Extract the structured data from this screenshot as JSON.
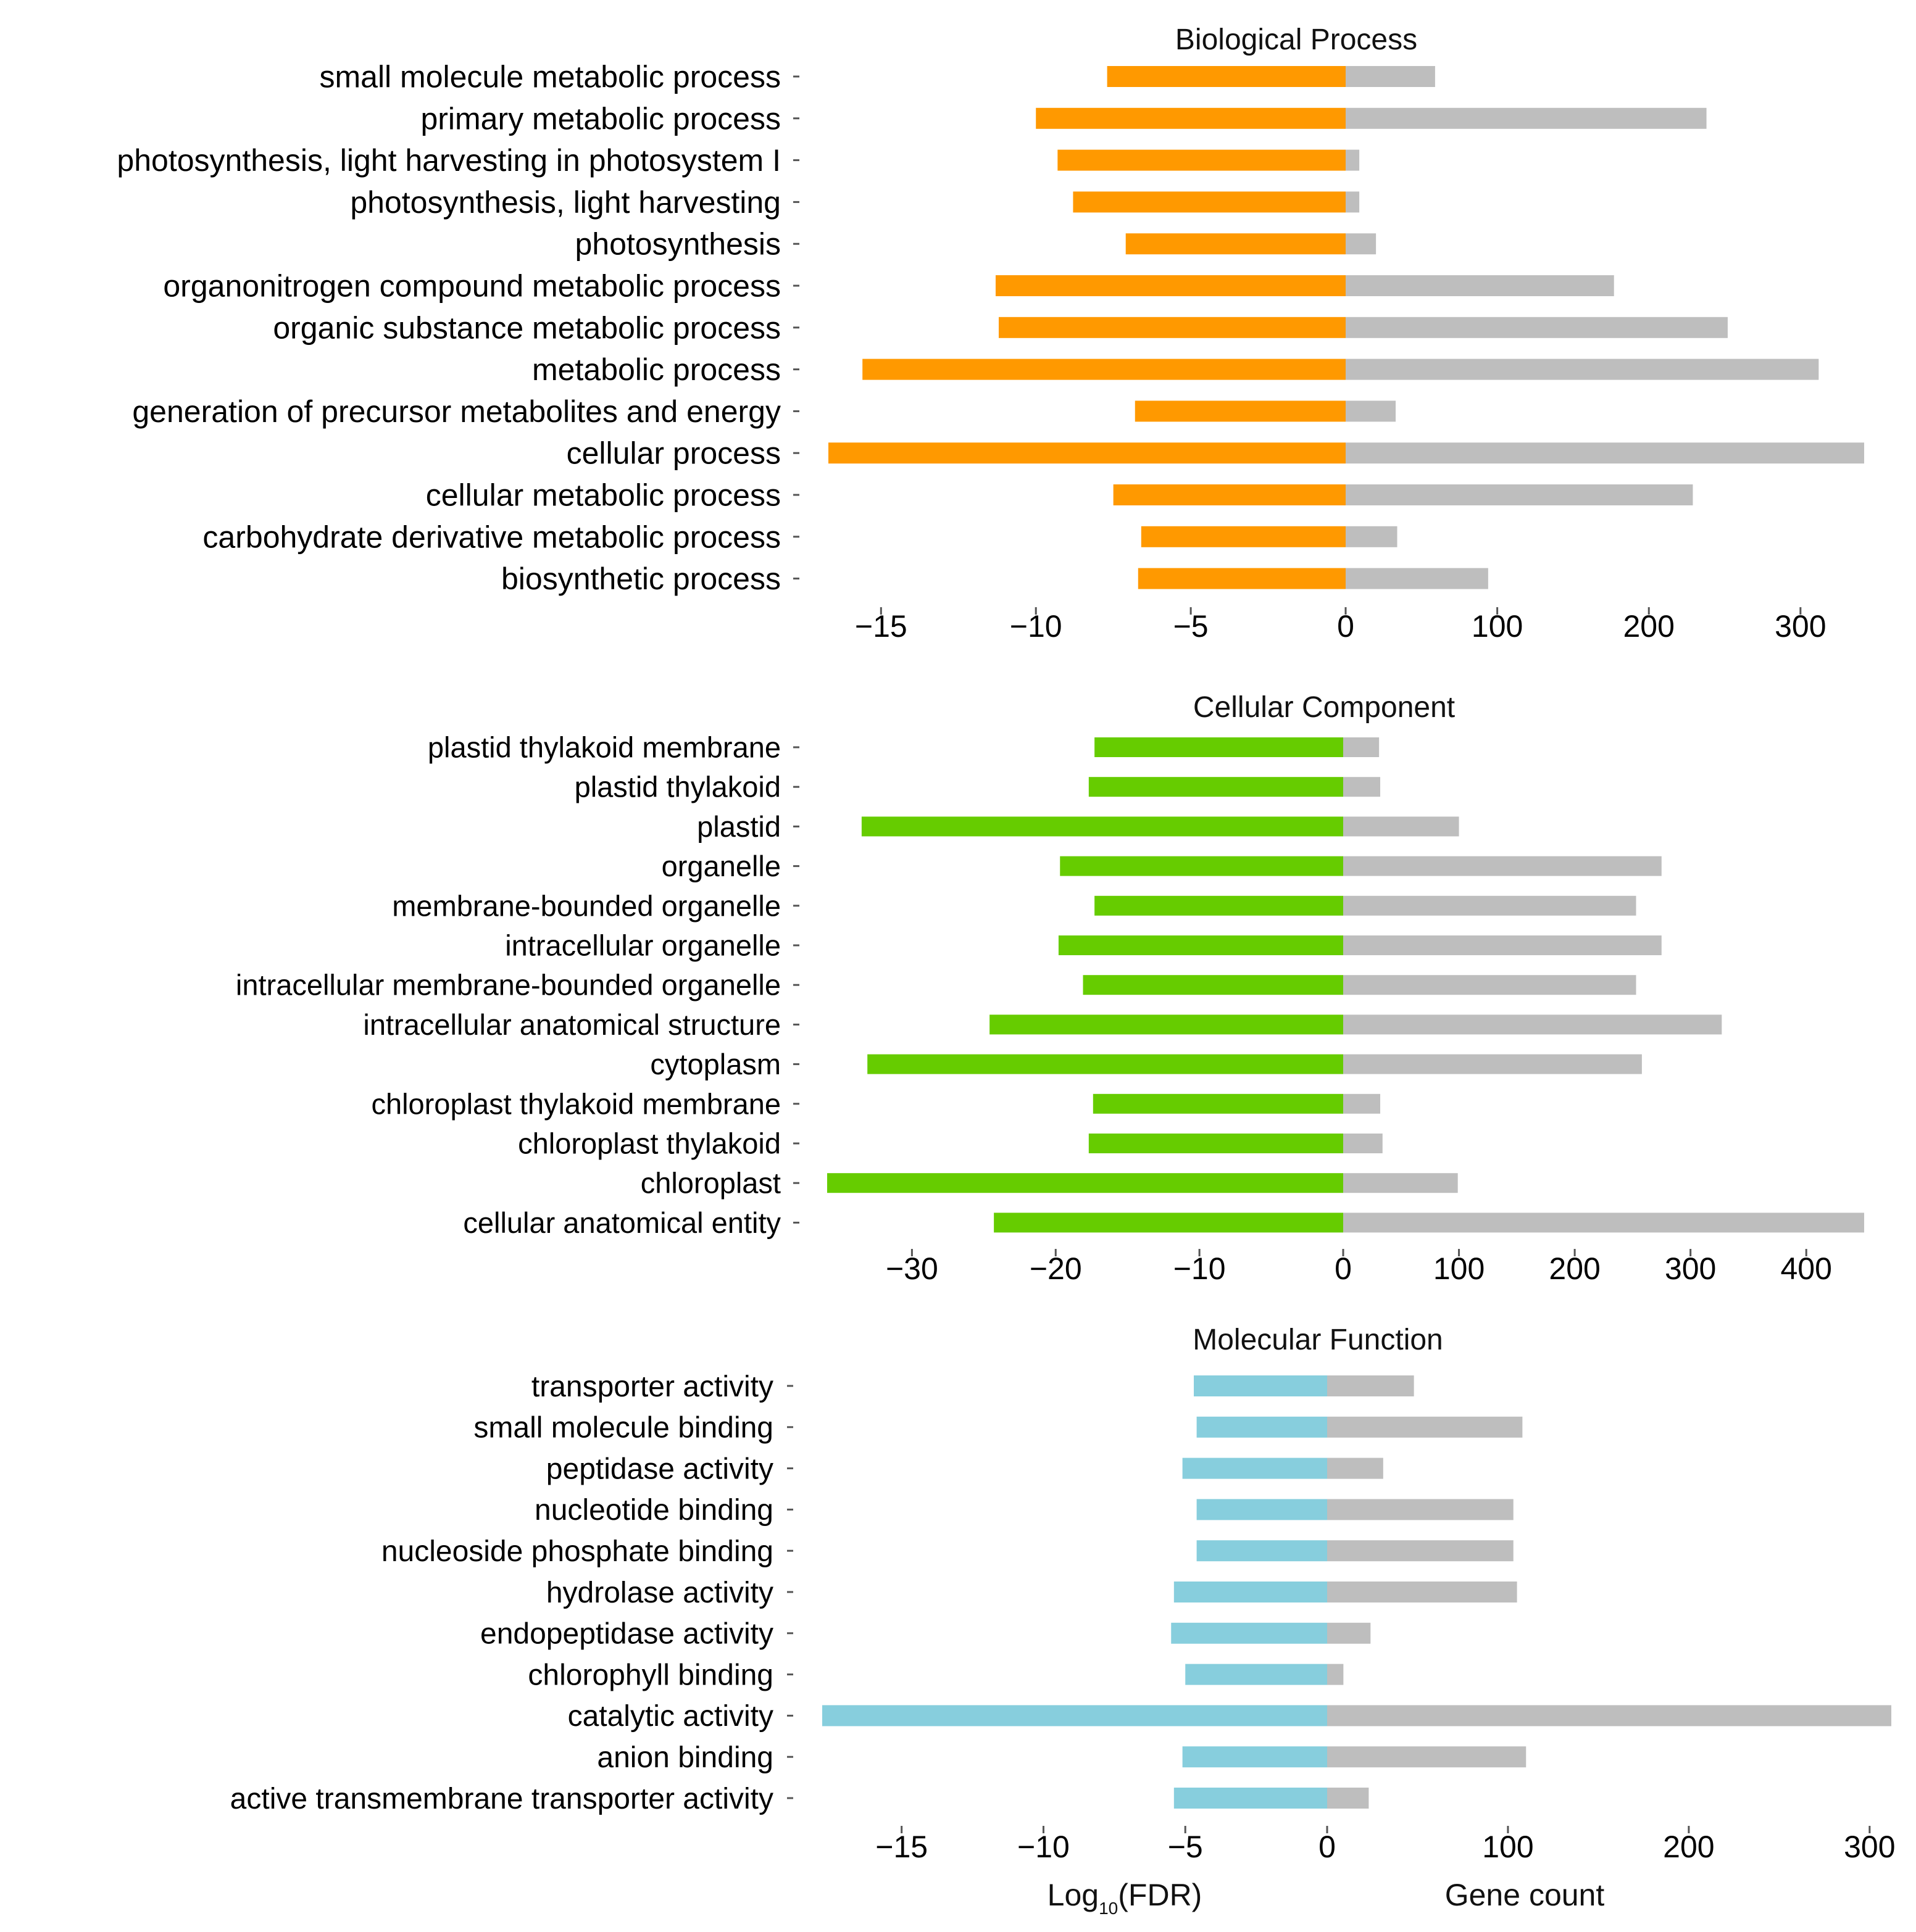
{
  "colors": {
    "biological_process": "#FF9900",
    "cellular_component": "#66CC00",
    "molecular_function": "#87CEDD",
    "gene_count": "#BEBEBE"
  },
  "footer": {
    "log_label_prefix": "Log",
    "log_label_subscript": "10",
    "log_label_suffix": "(FDR)",
    "gene_count_label": "Gene count"
  },
  "chart_data": [
    {
      "type": "bar",
      "orientation": "horizontal-diverging",
      "title": "Biological Process",
      "categories": [
        "small molecule metabolic process",
        "primary metabolic process",
        "photosynthesis, light harvesting in photosystem I",
        "photosynthesis, light harvesting",
        "photosynthesis",
        "organonitrogen compound metabolic process",
        "organic substance metabolic process",
        "metabolic process",
        "generation of precursor metabolites and energy",
        "cellular process",
        "cellular metabolic process",
        "carbohydrate derivative metabolic process",
        "biosynthetic process"
      ],
      "series": [
        {
          "name": "Log10(FDR)",
          "color_key": "biological_process",
          "values": [
            -7.7,
            -10.0,
            -9.3,
            -8.8,
            -7.1,
            -11.3,
            -11.2,
            -15.6,
            -6.8,
            -16.7,
            -7.5,
            -6.6,
            -6.7
          ]
        },
        {
          "name": "Gene count",
          "color_key": "gene_count",
          "values": [
            59,
            238,
            9,
            9,
            20,
            177,
            252,
            312,
            33,
            342,
            229,
            34,
            94
          ]
        }
      ],
      "log_ticks": [
        -15,
        -10,
        -5,
        0
      ],
      "log_range": [
        -16.7,
        0
      ],
      "count_ticks": [
        100,
        200,
        300
      ],
      "count_range": [
        0,
        342
      ]
    },
    {
      "type": "bar",
      "orientation": "horizontal-diverging",
      "title": "Cellular Component",
      "categories": [
        "plastid thylakoid membrane",
        "plastid thylakoid",
        "plastid",
        "organelle",
        "membrane-bounded organelle",
        "intracellular organelle",
        "intracellular membrane-bounded organelle",
        "intracellular anatomical structure",
        "cytoplasm",
        "chloroplast thylakoid membrane",
        "chloroplast thylakoid",
        "chloroplast",
        "cellular anatomical entity"
      ],
      "series": [
        {
          "name": "Log10(FDR)",
          "color_key": "cellular_component",
          "values": [
            -17.3,
            -17.7,
            -33.5,
            -19.7,
            -17.3,
            -19.8,
            -18.1,
            -24.6,
            -33.1,
            -17.4,
            -17.7,
            -35.9,
            -24.3
          ]
        },
        {
          "name": "Gene count",
          "color_key": "gene_count",
          "values": [
            31,
            32,
            100,
            275,
            253,
            275,
            253,
            327,
            258,
            32,
            34,
            99,
            450
          ]
        }
      ],
      "log_ticks": [
        -30,
        -20,
        -10,
        0
      ],
      "log_range": [
        -35.9,
        0
      ],
      "count_ticks": [
        100,
        200,
        300,
        400
      ],
      "count_range": [
        0,
        450
      ]
    },
    {
      "type": "bar",
      "orientation": "horizontal-diverging",
      "title": "Molecular Function",
      "categories": [
        "transporter activity",
        "small molecule binding",
        "peptidase activity",
        "nucleotide binding",
        "nucleoside phosphate binding",
        "hydrolase activity",
        "endopeptidase activity",
        "chlorophyll binding",
        "catalytic activity",
        "anion binding",
        "active transmembrane transporter activity"
      ],
      "series": [
        {
          "name": "Log10(FDR)",
          "color_key": "molecular_function",
          "values": [
            -4.7,
            -4.6,
            -5.1,
            -4.6,
            -4.6,
            -5.4,
            -5.5,
            -5.0,
            -17.8,
            -5.1,
            -5.4
          ]
        },
        {
          "name": "Gene count",
          "color_key": "gene_count",
          "values": [
            48,
            108,
            31,
            103,
            103,
            105,
            24,
            9,
            312,
            110,
            23
          ]
        }
      ],
      "log_ticks": [
        -15,
        -10,
        -5,
        0
      ],
      "log_range": [
        -17.8,
        0
      ],
      "count_ticks": [
        100,
        200,
        300
      ],
      "count_range": [
        0,
        312
      ]
    }
  ]
}
